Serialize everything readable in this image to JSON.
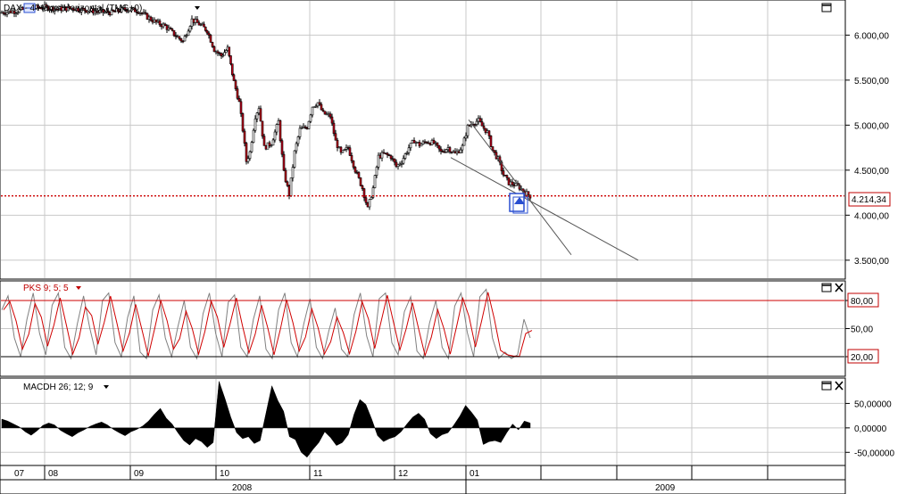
{
  "chart_data": [
    {
      "type": "candlestick",
      "title": "DAX - 4 Hours Horizontal (TMG+0)",
      "instrument": "DAX",
      "timeframe": "4 Hours",
      "y_ticks": [
        "6.000,00",
        "5.500,00",
        "5.000,00",
        "4.500,00",
        "4.000,00",
        "3.500,00"
      ],
      "ylim": [
        3300,
        6380
      ],
      "last_price": 4214.34,
      "last_price_label": "4.214,34",
      "approx_closes": [
        [
          0,
          6250
        ],
        [
          20,
          6270
        ],
        [
          35,
          6300
        ],
        [
          50,
          6310
        ],
        [
          65,
          6290
        ],
        [
          80,
          6300
        ],
        [
          95,
          6280
        ],
        [
          110,
          6260
        ],
        [
          125,
          6250
        ],
        [
          140,
          6290
        ],
        [
          155,
          6270
        ],
        [
          165,
          6200
        ],
        [
          175,
          6140
        ],
        [
          185,
          6100
        ],
        [
          195,
          6010
        ],
        [
          205,
          5930
        ],
        [
          215,
          6170
        ],
        [
          225,
          6110
        ],
        [
          232,
          6050
        ],
        [
          240,
          5840
        ],
        [
          248,
          5770
        ],
        [
          255,
          5850
        ],
        [
          262,
          5480
        ],
        [
          268,
          5250
        ],
        [
          272,
          4950
        ],
        [
          276,
          4600
        ],
        [
          280,
          4700
        ],
        [
          286,
          5100
        ],
        [
          290,
          5200
        ],
        [
          296,
          4750
        ],
        [
          304,
          4800
        ],
        [
          312,
          5040
        ],
        [
          318,
          4470
        ],
        [
          324,
          4230
        ],
        [
          330,
          4700
        ],
        [
          336,
          4950
        ],
        [
          344,
          4980
        ],
        [
          350,
          5210
        ],
        [
          356,
          5250
        ],
        [
          362,
          5130
        ],
        [
          370,
          5100
        ],
        [
          376,
          4820
        ],
        [
          382,
          4680
        ],
        [
          390,
          4750
        ],
        [
          398,
          4500
        ],
        [
          406,
          4300
        ],
        [
          412,
          4070
        ],
        [
          418,
          4300
        ],
        [
          424,
          4650
        ],
        [
          430,
          4680
        ],
        [
          438,
          4650
        ],
        [
          444,
          4540
        ],
        [
          450,
          4600
        ],
        [
          458,
          4750
        ],
        [
          464,
          4830
        ],
        [
          470,
          4780
        ],
        [
          478,
          4820
        ],
        [
          486,
          4800
        ],
        [
          494,
          4700
        ],
        [
          502,
          4750
        ],
        [
          510,
          4680
        ],
        [
          518,
          4760
        ],
        [
          524,
          4980
        ],
        [
          530,
          5030
        ],
        [
          536,
          5050
        ],
        [
          540,
          4990
        ],
        [
          546,
          4920
        ],
        [
          552,
          4720
        ],
        [
          558,
          4620
        ],
        [
          564,
          4450
        ],
        [
          570,
          4360
        ],
        [
          576,
          4340
        ],
        [
          582,
          4310
        ],
        [
          588,
          4250
        ],
        [
          594,
          4214
        ]
      ],
      "trendlines": [
        {
          "from": [
            525,
            5060
          ],
          "to": [
            640,
            3560
          ]
        },
        {
          "from": [
            505,
            4640
          ],
          "to": [
            715,
            3500
          ]
        }
      ]
    },
    {
      "type": "line",
      "title": "PKS 9; 5; 5",
      "y_ticks": [
        "80,00",
        "50,00",
        "20,00"
      ],
      "levels": [
        "80,00",
        "20,00"
      ],
      "ylim": [
        0,
        100
      ],
      "series": [
        {
          "values": [
            70,
            85,
            40,
            20,
            60,
            88,
            45,
            22,
            75,
            88,
            30,
            18,
            55,
            85,
            50,
            22,
            80,
            88,
            35,
            20,
            62,
            85,
            25,
            18,
            70,
            86,
            40,
            20,
            52,
            80,
            30,
            18,
            66,
            88,
            45,
            20,
            78,
            86,
            30,
            20,
            60,
            85,
            28,
            18,
            70,
            88,
            35,
            20,
            55,
            82,
            30,
            18,
            48,
            72,
            28,
            20,
            65,
            88,
            42,
            20,
            82,
            88,
            35,
            22,
            68,
            84,
            26,
            18,
            56,
            80,
            30,
            18,
            74,
            88,
            46,
            20,
            84,
            92,
            40,
            18,
            25,
            18,
            22,
            60,
            40
          ]
        }
      ]
    },
    {
      "type": "bar",
      "title": "MACDH 26; 12; 9",
      "y_ticks": [
        "50,00000",
        "0,00000",
        "-50,00000"
      ],
      "ylim": [
        -75,
        100
      ],
      "values": [
        18,
        14,
        8,
        2,
        -8,
        -15,
        -6,
        5,
        10,
        6,
        -5,
        -12,
        -18,
        -10,
        -4,
        3,
        8,
        12,
        6,
        -3,
        -10,
        -16,
        -8,
        -3,
        4,
        14,
        28,
        40,
        20,
        8,
        -10,
        -26,
        -35,
        -22,
        -28,
        -40,
        -30,
        95,
        60,
        22,
        -10,
        -22,
        -18,
        -32,
        -26,
        30,
        86,
        56,
        34,
        -18,
        -24,
        -50,
        -60,
        -44,
        -30,
        -8,
        -20,
        -36,
        -30,
        -14,
        28,
        58,
        48,
        18,
        -16,
        -28,
        -22,
        -18,
        -8,
        8,
        22,
        30,
        18,
        -12,
        -22,
        -14,
        -10,
        6,
        24,
        46,
        32,
        16,
        -34,
        -28,
        -26,
        -30,
        -10,
        8,
        -4,
        14,
        10
      ]
    }
  ],
  "x_axis": {
    "months": [
      "07",
      "08",
      "09",
      "10",
      "11",
      "12",
      "01"
    ],
    "years": [
      "2008",
      "2009"
    ]
  },
  "colors": {
    "bull": "#ffffff",
    "bear": "#c0001a",
    "wick": "#000000",
    "grid": "#c8c8c8",
    "level_line": "#cc0000",
    "price_line": "#cc0000",
    "pks_main": "#808080",
    "pks_signal": "#d00000",
    "marker": "#2a4fd0"
  },
  "icons": [
    "chart-icon",
    "dropdown-icon",
    "maximize-icon",
    "close-icon",
    "marker-icon"
  ]
}
